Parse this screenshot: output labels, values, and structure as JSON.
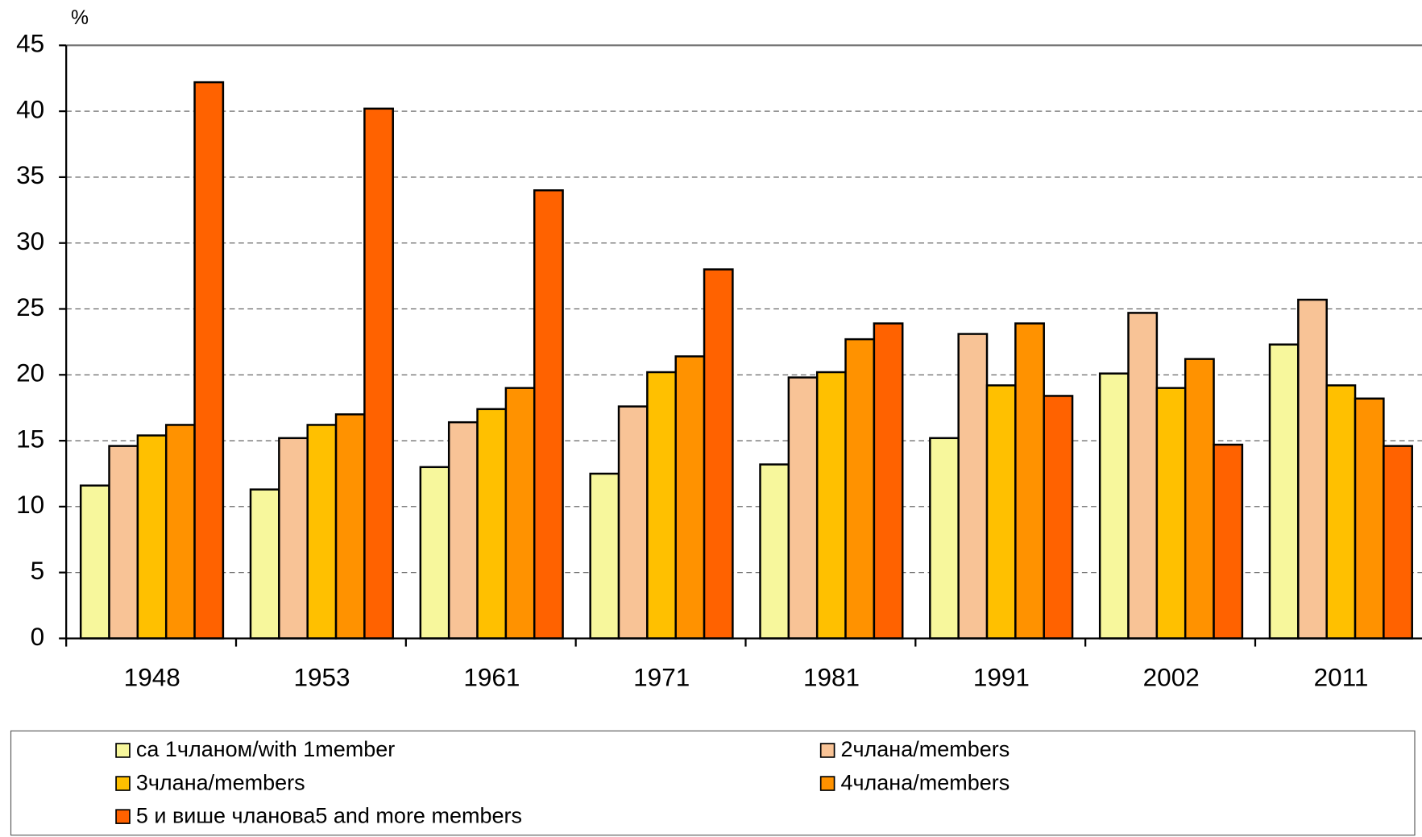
{
  "chart_data": {
    "type": "bar",
    "y_label": "%",
    "categories": [
      "1948",
      "1953",
      "1961",
      "1971",
      "1981",
      "1991",
      "2002",
      "2011"
    ],
    "series": [
      {
        "name": "са 1чланом/with 1member",
        "color": "#f7f79c",
        "values": [
          11.6,
          11.3,
          13.0,
          12.5,
          13.2,
          15.2,
          20.1,
          22.3
        ]
      },
      {
        "name": "2члана/members",
        "color": "#f8c396",
        "values": [
          14.6,
          15.2,
          16.4,
          17.6,
          19.8,
          23.1,
          24.7,
          25.7
        ]
      },
      {
        "name": "3члана/members",
        "color": "#ffc000",
        "values": [
          15.4,
          16.2,
          17.4,
          20.2,
          20.2,
          19.2,
          19.0,
          19.2
        ]
      },
      {
        "name": "4члана/members",
        "color": "#ff9200",
        "values": [
          16.2,
          17.0,
          19.0,
          21.4,
          22.7,
          23.9,
          21.2,
          18.2
        ]
      },
      {
        "name": "5 и више чланова5 and more members",
        "color": "#ff6200",
        "values": [
          42.2,
          40.2,
          34.0,
          28.0,
          23.9,
          18.4,
          14.7,
          14.6
        ]
      }
    ],
    "ylim": [
      0,
      45
    ],
    "yticks": [
      0,
      5,
      10,
      15,
      20,
      25,
      30,
      35,
      40,
      45
    ],
    "grid": true
  }
}
